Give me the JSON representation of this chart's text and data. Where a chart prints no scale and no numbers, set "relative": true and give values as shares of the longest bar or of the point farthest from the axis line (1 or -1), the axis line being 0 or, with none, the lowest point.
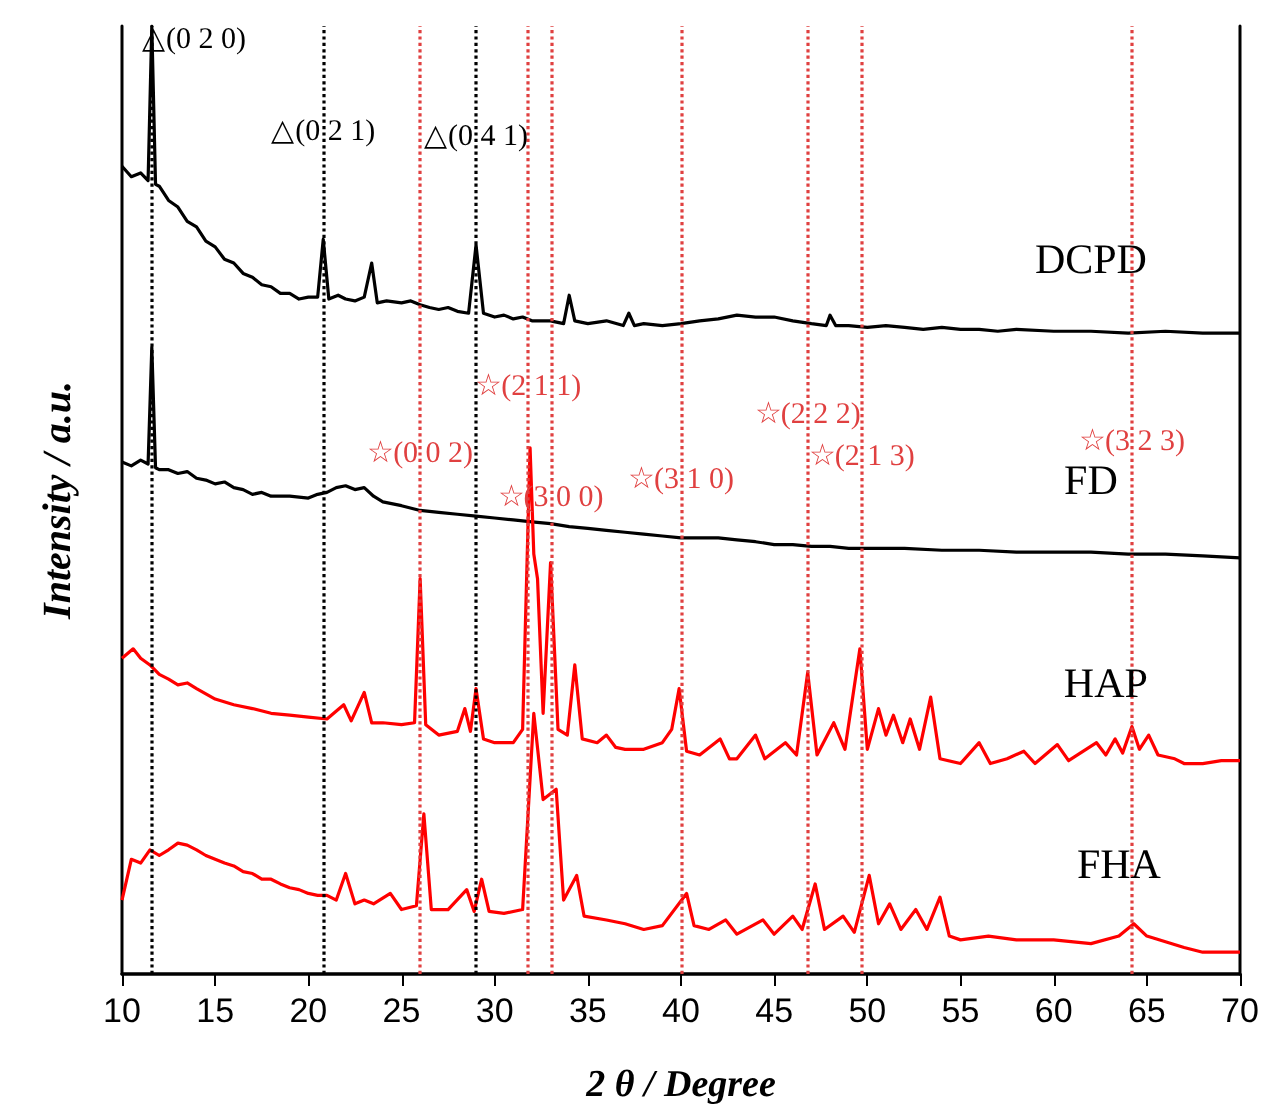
{
  "chart_data": {
    "type": "line",
    "xlabel": "2 θ / Degree",
    "ylabel": "Intensity / a.u.",
    "xlim": [
      10,
      70
    ],
    "xticks": [
      10,
      15,
      20,
      25,
      30,
      35,
      40,
      45,
      50,
      55,
      60,
      65,
      70
    ],
    "relative": true,
    "marker": "none",
    "series": [
      {
        "name": "DCPD",
        "color": "#000000",
        "x": [
          10,
          10.5,
          11,
          11.4,
          11.6,
          11.8,
          12,
          12.5,
          13,
          13.5,
          14,
          14.5,
          15,
          15.5,
          16,
          16.5,
          17,
          17.5,
          18,
          18.5,
          19,
          19.5,
          20,
          20.5,
          20.8,
          21.1,
          21.6,
          22,
          22.5,
          23,
          23.4,
          23.7,
          24.2,
          25,
          25.5,
          26,
          26.5,
          27,
          27.5,
          28,
          28.6,
          29,
          29.4,
          30,
          30.5,
          31,
          31.5,
          32,
          33,
          33.7,
          34,
          34.3,
          35,
          36,
          36.9,
          37.2,
          37.5,
          38,
          39,
          40,
          41,
          42,
          43,
          44,
          45,
          46,
          47,
          47.8,
          48,
          48.3,
          49,
          50,
          51,
          52,
          53,
          54,
          55,
          56,
          57,
          58,
          60,
          62,
          64,
          66,
          68,
          70
        ],
        "values": [
          0.852,
          0.841,
          0.845,
          0.837,
          1,
          0.833,
          0.831,
          0.816,
          0.809,
          0.794,
          0.788,
          0.773,
          0.767,
          0.754,
          0.75,
          0.739,
          0.735,
          0.727,
          0.725,
          0.718,
          0.718,
          0.712,
          0.714,
          0.714,
          0.775,
          0.712,
          0.716,
          0.712,
          0.71,
          0.714,
          0.75,
          0.708,
          0.71,
          0.708,
          0.71,
          0.706,
          0.703,
          0.701,
          0.703,
          0.699,
          0.697,
          0.769,
          0.697,
          0.693,
          0.695,
          0.691,
          0.693,
          0.689,
          0.689,
          0.686,
          0.716,
          0.689,
          0.686,
          0.689,
          0.684,
          0.697,
          0.684,
          0.686,
          0.684,
          0.686,
          0.689,
          0.691,
          0.695,
          0.693,
          0.693,
          0.689,
          0.686,
          0.684,
          0.695,
          0.684,
          0.684,
          0.682,
          0.684,
          0.682,
          0.68,
          0.682,
          0.68,
          0.68,
          0.678,
          0.68,
          0.678,
          0.678,
          0.676,
          0.678,
          0.676,
          0.676
        ]
      },
      {
        "name": "FD",
        "color": "#000000",
        "x": [
          10,
          10.5,
          11,
          11.4,
          11.6,
          11.8,
          12,
          12.5,
          13,
          13.5,
          14,
          14.5,
          15,
          15.5,
          16,
          16.5,
          17,
          17.5,
          18,
          19,
          20,
          20.5,
          21,
          21.5,
          22,
          22.5,
          23,
          23.5,
          24,
          25,
          26,
          27,
          28,
          29,
          30,
          31,
          32,
          33,
          34,
          35,
          36,
          37,
          38,
          39,
          40,
          41,
          42,
          43,
          44,
          45,
          46,
          47,
          48,
          49,
          50,
          52,
          54,
          56,
          58,
          60,
          62,
          64,
          66,
          68,
          70
        ],
        "values": [
          0.54,
          0.536,
          0.542,
          0.538,
          0.661,
          0.534,
          0.532,
          0.532,
          0.528,
          0.53,
          0.523,
          0.521,
          0.517,
          0.519,
          0.513,
          0.511,
          0.506,
          0.508,
          0.504,
          0.504,
          0.502,
          0.506,
          0.508,
          0.513,
          0.515,
          0.511,
          0.513,
          0.504,
          0.498,
          0.494,
          0.489,
          0.487,
          0.485,
          0.483,
          0.481,
          0.479,
          0.477,
          0.475,
          0.472,
          0.47,
          0.468,
          0.466,
          0.464,
          0.462,
          0.46,
          0.46,
          0.46,
          0.458,
          0.456,
          0.453,
          0.453,
          0.451,
          0.451,
          0.449,
          0.449,
          0.449,
          0.447,
          0.447,
          0.445,
          0.445,
          0.445,
          0.443,
          0.443,
          0.441,
          0.439
        ]
      },
      {
        "name": "HAP",
        "color": "#ff0000",
        "x": [
          10,
          10.6,
          11,
          11.5,
          12,
          12.5,
          13,
          13.5,
          14,
          15,
          16,
          17,
          18,
          19,
          20,
          21,
          21.9,
          22.3,
          23,
          23.4,
          24,
          25,
          25.7,
          26,
          26.3,
          27,
          28,
          28.4,
          28.7,
          29,
          29.4,
          30,
          31,
          31.5,
          31.9,
          32.1,
          32.3,
          32.6,
          33,
          33.4,
          33.9,
          34.3,
          34.7,
          35.5,
          36,
          36.5,
          37,
          38,
          39,
          39.5,
          39.9,
          40.3,
          41,
          42.1,
          42.6,
          43,
          44,
          44.5,
          45.6,
          46.2,
          46.8,
          47.3,
          48.2,
          48.8,
          49.6,
          50,
          50.6,
          51,
          51.4,
          51.9,
          52.3,
          52.8,
          53.4,
          53.9,
          55,
          56,
          56.6,
          57.5,
          58.4,
          59,
          60.2,
          60.8,
          62.3,
          62.8,
          63.3,
          63.7,
          64.2,
          64.6,
          65.1,
          65.6,
          66.5,
          67,
          68,
          69,
          70
        ],
        "values": [
          0.333,
          0.343,
          0.333,
          0.326,
          0.316,
          0.311,
          0.305,
          0.307,
          0.301,
          0.29,
          0.284,
          0.28,
          0.275,
          0.273,
          0.271,
          0.269,
          0.284,
          0.267,
          0.297,
          0.265,
          0.265,
          0.263,
          0.265,
          0.417,
          0.263,
          0.252,
          0.256,
          0.28,
          0.256,
          0.301,
          0.248,
          0.244,
          0.244,
          0.258,
          0.555,
          0.443,
          0.417,
          0.275,
          0.434,
          0.258,
          0.252,
          0.326,
          0.248,
          0.244,
          0.252,
          0.239,
          0.237,
          0.237,
          0.244,
          0.258,
          0.301,
          0.235,
          0.231,
          0.248,
          0.227,
          0.227,
          0.252,
          0.227,
          0.244,
          0.231,
          0.318,
          0.231,
          0.265,
          0.237,
          0.343,
          0.237,
          0.28,
          0.252,
          0.273,
          0.244,
          0.269,
          0.237,
          0.292,
          0.227,
          0.222,
          0.244,
          0.222,
          0.227,
          0.235,
          0.222,
          0.242,
          0.225,
          0.244,
          0.231,
          0.248,
          0.233,
          0.261,
          0.237,
          0.252,
          0.231,
          0.227,
          0.222,
          0.222,
          0.225,
          0.225
        ]
      },
      {
        "name": "FHA",
        "color": "#ff0000",
        "x": [
          10,
          10.5,
          11,
          11.5,
          12,
          12.5,
          13,
          13.5,
          14,
          14.5,
          15,
          15.5,
          16,
          16.5,
          17,
          17.5,
          18,
          18.5,
          19,
          19.5,
          20,
          20.5,
          21,
          21.5,
          22,
          22.5,
          23,
          23.5,
          24.4,
          25,
          25.8,
          26.2,
          26.6,
          27.5,
          28.5,
          28.9,
          29.3,
          29.7,
          30.5,
          31.5,
          32.1,
          32.6,
          33.3,
          33.7,
          34.4,
          34.8,
          36,
          37,
          38,
          39,
          40.3,
          40.7,
          41.5,
          42.4,
          43,
          44.4,
          45,
          46,
          46.5,
          47.2,
          47.7,
          48.7,
          49.3,
          50.1,
          50.6,
          51.2,
          51.8,
          52.6,
          53.2,
          53.9,
          54.4,
          55,
          56.5,
          58,
          60,
          62,
          63.5,
          64.3,
          65,
          66,
          67,
          68,
          70
        ],
        "values": [
          0.078,
          0.121,
          0.117,
          0.131,
          0.125,
          0.131,
          0.138,
          0.136,
          0.131,
          0.125,
          0.121,
          0.117,
          0.114,
          0.108,
          0.106,
          0.1,
          0.1,
          0.095,
          0.091,
          0.089,
          0.085,
          0.083,
          0.083,
          0.078,
          0.106,
          0.074,
          0.078,
          0.074,
          0.085,
          0.068,
          0.072,
          0.169,
          0.068,
          0.068,
          0.089,
          0.066,
          0.1,
          0.066,
          0.064,
          0.068,
          0.275,
          0.184,
          0.195,
          0.078,
          0.104,
          0.061,
          0.057,
          0.053,
          0.047,
          0.051,
          0.085,
          0.051,
          0.047,
          0.057,
          0.042,
          0.057,
          0.042,
          0.061,
          0.047,
          0.095,
          0.047,
          0.061,
          0.044,
          0.104,
          0.053,
          0.074,
          0.047,
          0.068,
          0.047,
          0.081,
          0.04,
          0.036,
          0.04,
          0.036,
          0.036,
          0.032,
          0.04,
          0.053,
          0.04,
          0.034,
          0.028,
          0.023,
          0.023
        ]
      }
    ],
    "ref_lines": [
      {
        "axis": "x",
        "value": 11.6,
        "color": "#000000",
        "line_style": "dotted"
      },
      {
        "axis": "x",
        "value": 20.8,
        "color": "#000000",
        "line_style": "dotted"
      },
      {
        "axis": "x",
        "value": 29.0,
        "color": "#000000",
        "line_style": "dotted"
      },
      {
        "axis": "x",
        "value": 26.0,
        "color": "#e04040",
        "line_style": "dotted"
      },
      {
        "axis": "x",
        "value": 31.8,
        "color": "#e04040",
        "line_style": "dotted"
      },
      {
        "axis": "x",
        "value": 33.0,
        "color": "#e04040",
        "line_style": "dotted"
      },
      {
        "axis": "x",
        "value": 40.0,
        "color": "#e04040",
        "line_style": "dotted"
      },
      {
        "axis": "x",
        "value": 46.8,
        "color": "#e04040",
        "line_style": "dotted"
      },
      {
        "axis": "x",
        "value": 49.7,
        "color": "#e04040",
        "line_style": "dotted"
      },
      {
        "axis": "x",
        "value": 64.2,
        "color": "#e04040",
        "line_style": "dotted"
      }
    ],
    "annotations": [
      {
        "text": "△(0 2 0)",
        "x": 11.6,
        "y": 0.985
      },
      {
        "text": "△(0 2 1)",
        "x": 20.8,
        "y": 0.888
      },
      {
        "text": "△(0 4 1)",
        "x": 29.0,
        "y": 0.883
      },
      {
        "text": "☆(2 1 1)",
        "x": 31.8,
        "y": 0.619
      },
      {
        "text": "☆(0 0 2)",
        "x": 26.0,
        "y": 0.549
      },
      {
        "text": "☆(3 0 0)",
        "x": 33.0,
        "y": 0.502
      },
      {
        "text": "☆(3 1 0)",
        "x": 40.0,
        "y": 0.521
      },
      {
        "text": "☆(2 2 2)",
        "x": 46.8,
        "y": 0.59
      },
      {
        "text": "☆(2 1 3)",
        "x": 49.7,
        "y": 0.545
      },
      {
        "text": "☆(3 2 3)",
        "x": 64.2,
        "y": 0.561
      }
    ]
  }
}
